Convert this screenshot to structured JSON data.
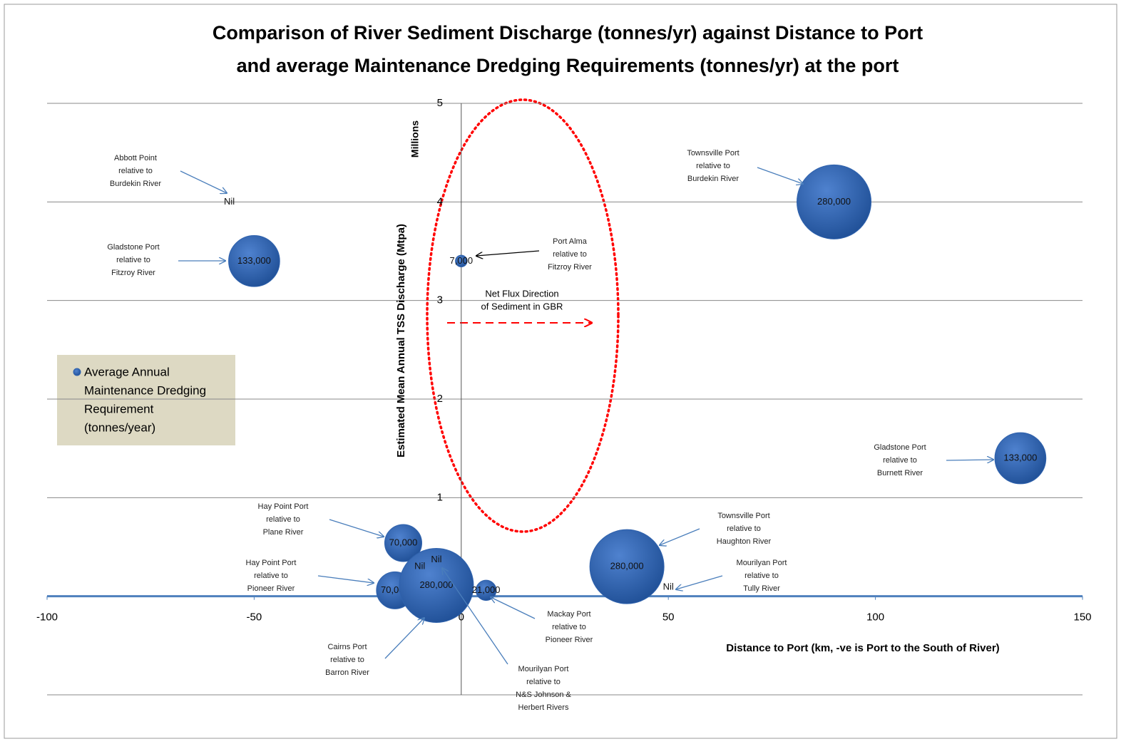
{
  "chart_data": {
    "type": "bubble",
    "title": [
      "Comparison of River Sediment Discharge (tonnes/yr) against Distance to Port",
      "and average Maintenance Dredging Requirements (tonnes/yr) at the port"
    ],
    "x_label": "Distance to Port (km, -ve is Port to the South of River)",
    "y_label": "Estimated Mean Annual TSS Discharge (Mtpa)",
    "y_unit": "Millions",
    "xlim": [
      -100,
      150
    ],
    "xticks": [
      -100,
      -50,
      0,
      50,
      100,
      150
    ],
    "ylim": [
      -1,
      5
    ],
    "yticks": [
      1,
      2,
      3,
      4,
      5
    ],
    "grid": true,
    "legend": "left",
    "series": [
      {
        "name": [
          "Average Annual",
          "Maintenance Dredging",
          "Requirement",
          "(tonnes/year)"
        ],
        "color": "#2f62ad",
        "x": [
          -56,
          -50,
          0,
          90,
          135,
          -14,
          -16,
          -6,
          -6,
          -10,
          6,
          40,
          50
        ],
        "values": [
          4,
          3.4,
          3.4,
          4,
          1.4,
          0.54,
          0.06,
          0.11,
          0.37,
          0.3,
          0.06,
          0.3,
          0.09
        ],
        "sizes": [
          0,
          133000,
          7000,
          280000,
          133000,
          70000,
          70000,
          280000,
          0,
          0,
          21000,
          280000,
          0
        ],
        "value_labels": [
          "Nil",
          "133,000",
          "7,000",
          "280,000",
          "133,000",
          "70,000",
          "70,000",
          "280,000",
          "Nil",
          "Nil",
          "21,000",
          "280,000",
          "Nil"
        ]
      }
    ],
    "annotations": [
      [
        "Abbott Point",
        "relative to",
        "Burdekin River"
      ],
      [
        "Gladstone Port",
        "relative to",
        "Fitzroy River"
      ],
      [
        "Port Alma",
        "relative to",
        "Fitzroy River"
      ],
      [
        "Townsville Port",
        "relative to",
        "Burdekin River"
      ],
      [
        "Gladstone Port",
        "relative to",
        "Burnett River"
      ],
      [
        "Hay Point Port",
        "relative to",
        "Plane River"
      ],
      [
        "Hay Point Port",
        "relative to",
        "Pioneer River"
      ],
      [
        "Cairns Port",
        "relative to",
        "Barron River"
      ],
      [
        "Mourilyan Port",
        "relative to",
        "N&S Johnson &",
        "Herbert Rivers"
      ],
      [
        "Mackay Port",
        "relative to",
        "Pioneer River"
      ],
      [
        "Townsville Port",
        "relative to",
        "Haughton River"
      ],
      [
        "Mourilyan Port",
        "relative to",
        "Tully River"
      ]
    ],
    "flux_note": [
      "Net Flux Direction",
      "of Sediment in GBR"
    ]
  }
}
